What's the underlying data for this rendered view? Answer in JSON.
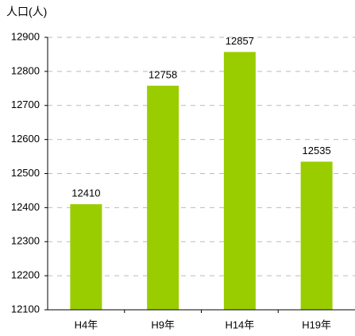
{
  "chart_data": {
    "type": "bar",
    "y_label": "人口(人)",
    "categories": [
      "H4年",
      "H9年",
      "H14年",
      "H19年"
    ],
    "values": [
      12410,
      12758,
      12857,
      12535
    ],
    "color": "#9acd00",
    "ylim": [
      12100,
      12900
    ],
    "yticks": [
      12100,
      12200,
      12300,
      12400,
      12500,
      12600,
      12700,
      12800,
      12900
    ],
    "grid": true
  }
}
